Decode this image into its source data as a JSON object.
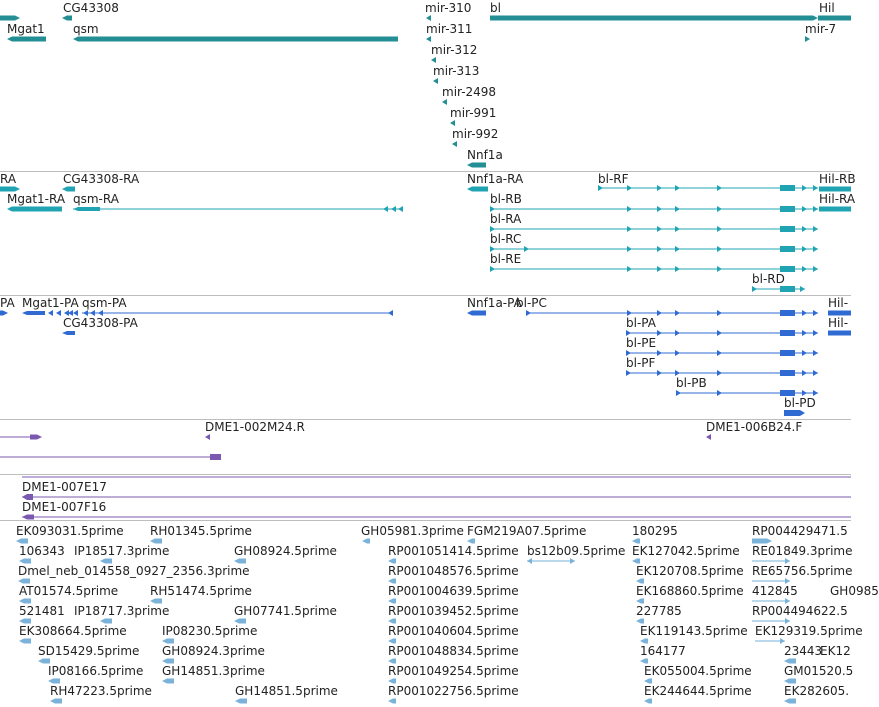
{
  "colors": {
    "genes": "#238f94",
    "transcripts": "#20a4b4",
    "proteins": "#2f6bd2",
    "clones": "#7b59b1",
    "est": "#7ab2da",
    "separator": "#bdbdbd"
  },
  "tracks": {
    "genes": {
      "labels": [
        "CG43308",
        "mir-310",
        "bl",
        "Hil",
        "Mgat1",
        "qsm",
        "mir-311",
        "mir-7",
        "mir-312",
        "mir-313",
        "mir-2498",
        "mir-991",
        "mir-992",
        "Nnf1a"
      ]
    },
    "transcripts": {
      "labels": [
        "RA",
        "CG43308-RA",
        "Nnf1a-RA",
        "bl-RF",
        "Hil-RB",
        "Mgat1-RA",
        "qsm-RA",
        "bl-RB",
        "Hil-RA",
        "bl-RA",
        "bl-RC",
        "bl-RE",
        "bl-RD"
      ]
    },
    "proteins": {
      "labels": [
        "PA",
        "Mgat1-PA",
        "qsm-PA",
        "Nnf1a-PA",
        "bl-PC",
        "Hil-",
        "CG43308-PA",
        "bl-PA",
        "Hil-",
        "bl-PE",
        "bl-PF",
        "bl-PB",
        "bl-PD"
      ]
    },
    "clones": {
      "labels": [
        "DME1-002M24.R",
        "DME1-006B24.F",
        "DME1-007E17",
        "DME1-007F16"
      ]
    },
    "ests": {
      "labels": [
        "EK093031.5prime",
        "RH01345.5prime",
        "GH05981.3prime",
        "FGM219A07.5prime",
        "180295",
        "RP004429471.5",
        "106343",
        "IP18517.3prime",
        "GH08924.5prime",
        "RP001051414.5prime",
        "bs12b09.5prime",
        "EK127042.5prime",
        "RE01849.3prime",
        "Dmel_neb_014558_0927_2356.3prime",
        "RP001048576.5prime",
        "EK120708.5prime",
        "RE65756.5prime",
        "AT01574.5prime",
        "RH51474.5prime",
        "RP001004639.5prime",
        "EK168860.5prime",
        "412845",
        "GH0985",
        "521481",
        "IP18717.3prime",
        "GH07741.5prime",
        "RP001039452.5prime",
        "227785",
        "RP004494622.5",
        "EK308664.5prime",
        "IP08230.5prime",
        "RP001040604.5prime",
        "EK119143.5prime",
        "EK129319.5prime",
        "SD15429.5prime",
        "GH08924.3prime",
        "RP001048834.5prime",
        "164177",
        "23443",
        "EK12",
        "IP08166.5prime",
        "GH14851.3prime",
        "RP001049254.5prime",
        "EK055004.5prime",
        "GM01520.5",
        "RH47223.5prime",
        "GH14851.5prime",
        "RP001022756.5prime",
        "EK244644.5prime",
        "EK282605."
      ]
    }
  }
}
